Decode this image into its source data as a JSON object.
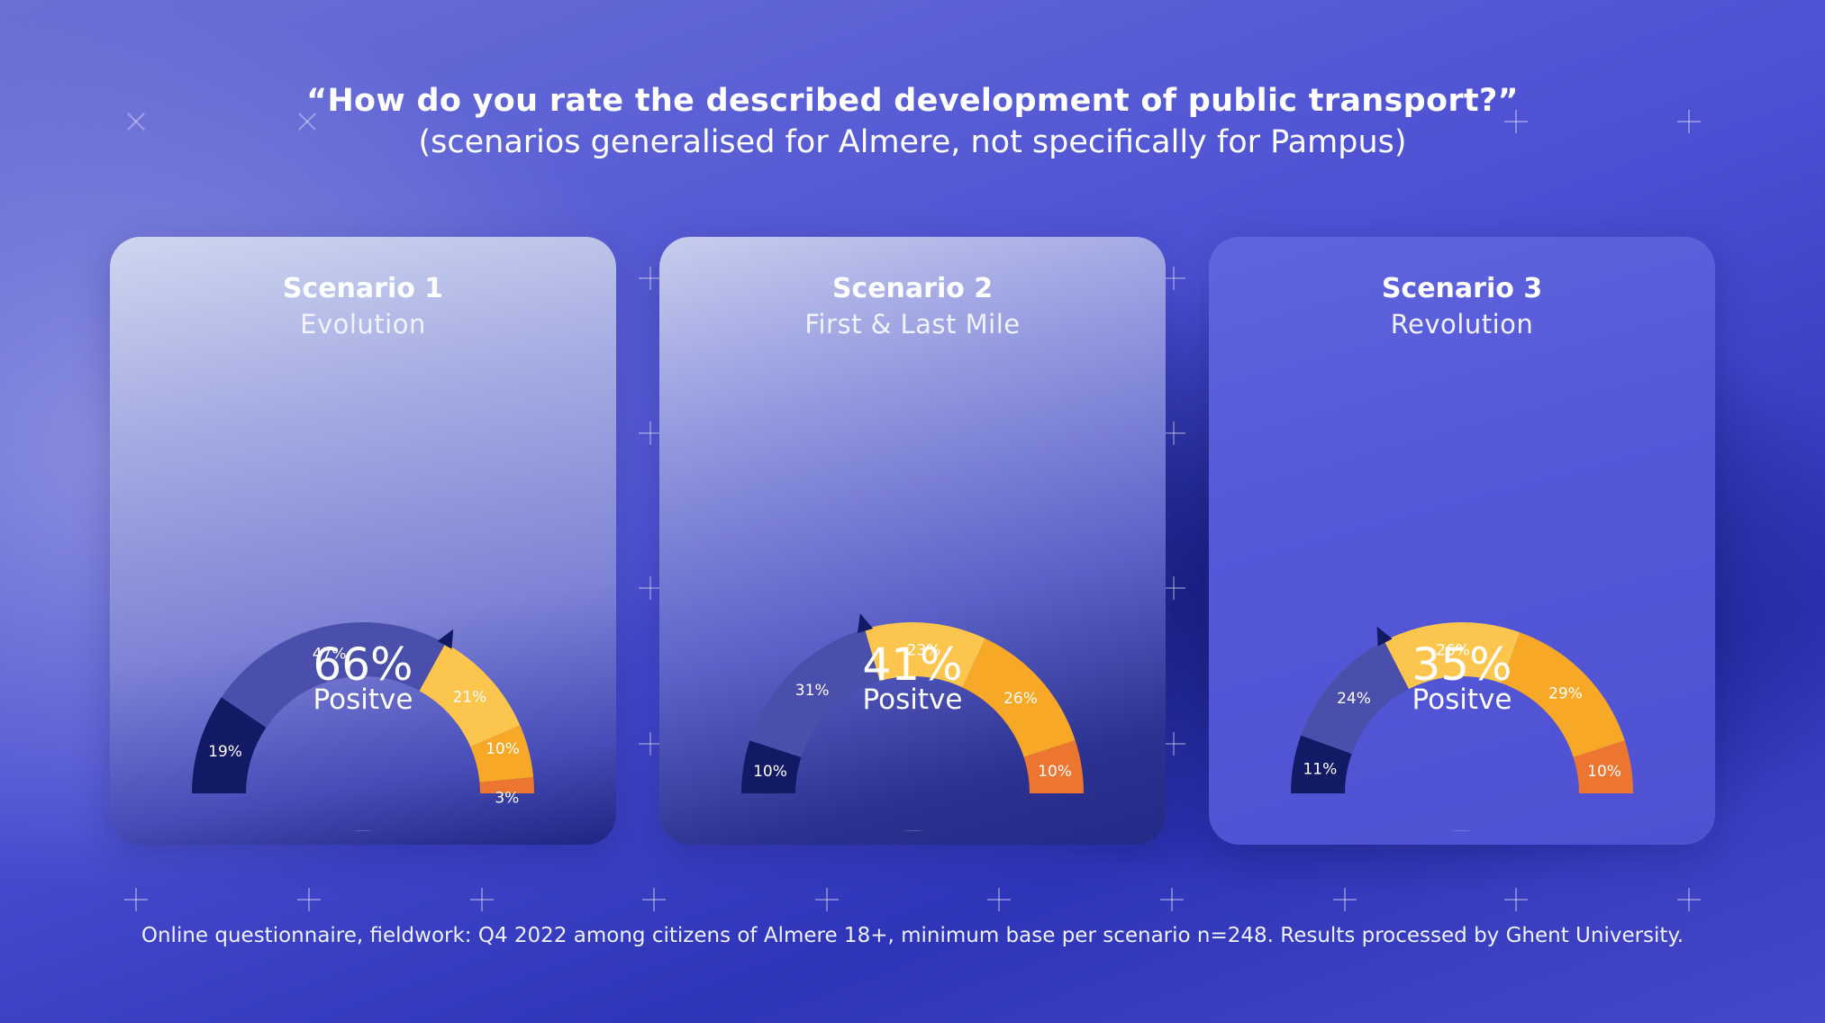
{
  "header": {
    "title": "“How do you rate the described development of public transport?”",
    "subtitle": "(scenarios generalised for Almere, not specifically for Pampus)"
  },
  "footnote": "Online questionnaire, fieldwork: Q4 2022 among citizens of Almere 18+, minimum base per scenario n=248. Results processed by Ghent University.",
  "colors": {
    "very_positive": "#121a66",
    "positive": "#4a4fab",
    "neutral": "#fcc54d",
    "negative": "#f7a826",
    "very_negative": "#ec7530"
  },
  "chart_data": [
    {
      "type": "gauge",
      "title": "Scenario 1",
      "subtitle": "Evolution",
      "segments": [
        19,
        47,
        21,
        10,
        3
      ],
      "labels": [
        "19%",
        "47%",
        "21%",
        "10%",
        "3%"
      ],
      "summary_value": "66%",
      "summary_label": "Positve"
    },
    {
      "type": "gauge",
      "title": "Scenario 2",
      "subtitle": "First & Last Mile",
      "segments": [
        10,
        31,
        23,
        26,
        10
      ],
      "labels": [
        "10%",
        "31%",
        "23%",
        "26%",
        "10%"
      ],
      "summary_value": "41%",
      "summary_label": "Positve"
    },
    {
      "type": "gauge",
      "title": "Scenario 3",
      "subtitle": "Revolution",
      "segments": [
        11,
        24,
        26,
        29,
        10
      ],
      "labels": [
        "11%",
        "24%",
        "26%",
        "29%",
        "10%"
      ],
      "summary_value": "35%",
      "summary_label": "Positve"
    }
  ]
}
